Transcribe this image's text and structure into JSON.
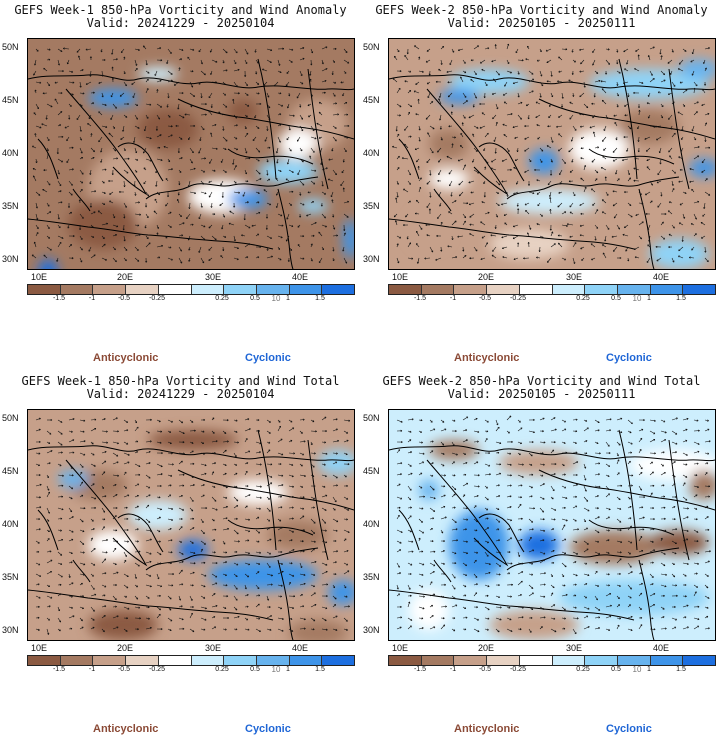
{
  "colors": {
    "brown3": "#8b5a42",
    "brown2": "#a47a62",
    "brown1": "#c6a08a",
    "brown0": "#e7d2c3",
    "white": "#ffffff",
    "cyan0": "#cdeefd",
    "cyan1": "#8fd3f7",
    "blue1": "#67b3ee",
    "blue2": "#3e94e9",
    "blue3": "#1d6fe0",
    "anticyclonic": "#8b4a36",
    "cyclonic": "#1f66d6"
  },
  "panels": [
    {
      "title": "GEFS Week-1 850-hPa Vorticity and Wind Anomaly",
      "valid": "Valid: 20241229 - 20250104",
      "pattern": "a1"
    },
    {
      "title": "GEFS Week-2 850-hPa Vorticity and Wind Anomaly",
      "valid": "Valid: 20250105 - 20250111",
      "pattern": "a2"
    },
    {
      "title": "GEFS Week-1 850-hPa Vorticity and Wind Total",
      "valid": "Valid: 20241229 - 20250104",
      "pattern": "t1"
    },
    {
      "title": "GEFS Week-2 850-hPa Vorticity and Wind Total",
      "valid": "Valid: 20250105 - 20250111",
      "pattern": "t2"
    }
  ],
  "lat_labels": [
    "50N",
    "45N",
    "40N",
    "35N",
    "30N"
  ],
  "lon_labels": [
    "10E",
    "20E",
    "30E",
    "40E"
  ],
  "colorbar": {
    "labels": [
      "-1.5",
      "-1",
      "-0.5",
      "-0.25",
      "0.25",
      "0.5",
      "1",
      "1.5"
    ],
    "unit": "10"
  },
  "legend": {
    "anticyclonic": "Anticyclonic",
    "cyclonic": "Cyclonic"
  }
}
